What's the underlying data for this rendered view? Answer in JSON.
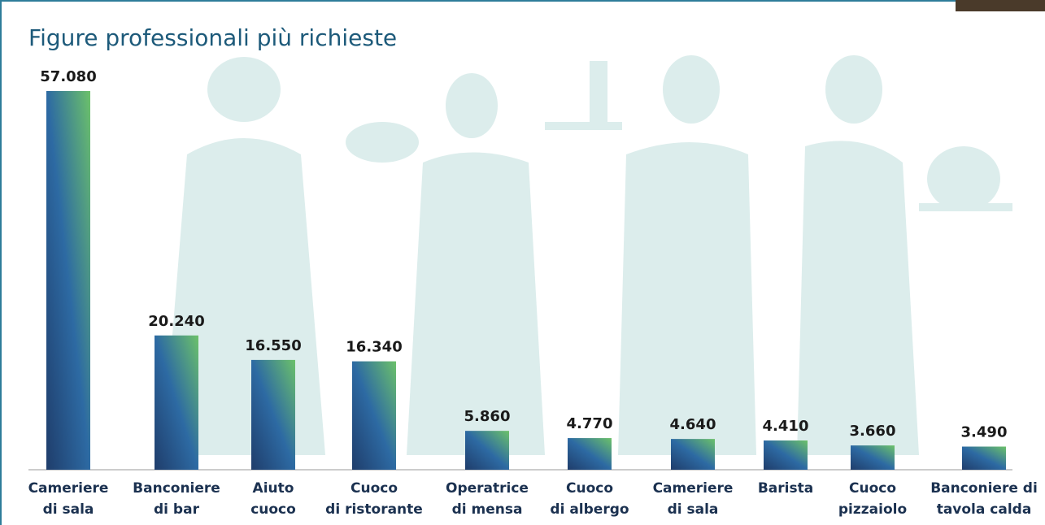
{
  "chart_data": {
    "type": "bar",
    "title": "Figure professionali più richieste",
    "categories": [
      "Cameriere\ndi sala",
      "Banconiere\ndi bar",
      "Aiuto\ncuoco",
      "Cuoco\ndi ristorante",
      "Operatrice\ndi mensa",
      "Cuoco\ndi albergo",
      "Cameriere\ndi sala",
      "Barista",
      "Cuoco\npizzaiolo",
      "Banconiere di\ntavola calda"
    ],
    "values": [
      57080,
      20240,
      16550,
      16340,
      5860,
      4770,
      4640,
      4410,
      3660,
      3490
    ],
    "value_labels": [
      "57.080",
      "20.240",
      "16.550",
      "16.340",
      "5.860",
      "4.770",
      "4.640",
      "4.410",
      "3.660",
      "3.490"
    ],
    "colors": [
      "#1f3d6b",
      "#2d6aa3",
      "#6cc16a"
    ]
  }
}
